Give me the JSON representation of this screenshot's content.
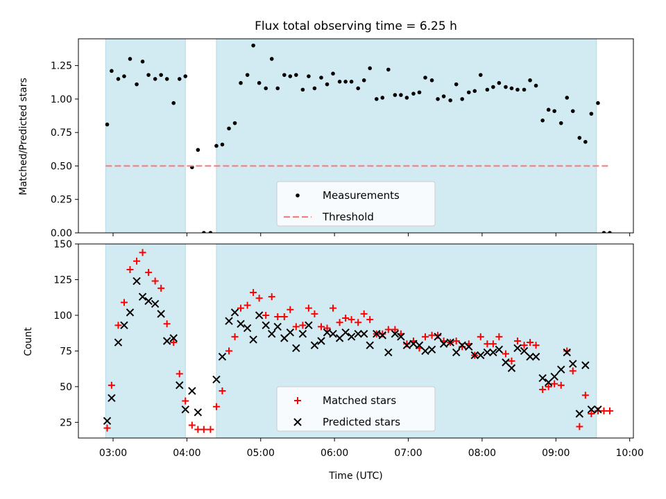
{
  "chart_data": [
    {
      "type": "scatter",
      "title": "Flux total observing time = 6.25 h",
      "xlabel": "",
      "ylabel": "Matched/Predicted stars",
      "xlim": [
        2.53,
        10.05
      ],
      "ylim": [
        0,
        1.45
      ],
      "yticks": [
        0,
        0.25,
        0.5,
        0.75,
        1.0,
        1.25
      ],
      "ytick_labels": [
        "0.00",
        "0.25",
        "0.50",
        "0.75",
        "1.00",
        "1.25"
      ],
      "shaded_intervals": [
        [
          2.9,
          3.98
        ],
        [
          4.4,
          9.55
        ]
      ],
      "shade_color": "#add8e6",
      "legend_position": "lower center",
      "series": [
        {
          "name": "Measurements",
          "marker": "dot",
          "color": "#000000",
          "x": [
            2.92,
            2.98,
            3.07,
            3.15,
            3.23,
            3.32,
            3.4,
            3.48,
            3.57,
            3.65,
            3.73,
            3.82,
            3.9,
            3.98,
            4.07,
            4.15,
            4.23,
            4.32,
            4.4,
            4.48,
            4.57,
            4.65,
            4.73,
            4.82,
            4.9,
            4.98,
            5.07,
            5.15,
            5.23,
            5.32,
            5.4,
            5.48,
            5.57,
            5.65,
            5.73,
            5.82,
            5.9,
            5.98,
            6.07,
            6.15,
            6.23,
            6.32,
            6.4,
            6.48,
            6.57,
            6.65,
            6.73,
            6.82,
            6.9,
            6.98,
            7.07,
            7.15,
            7.23,
            7.32,
            7.4,
            7.48,
            7.57,
            7.65,
            7.73,
            7.82,
            7.9,
            7.98,
            8.07,
            8.15,
            8.23,
            8.32,
            8.4,
            8.48,
            8.57,
            8.65,
            8.73,
            8.82,
            8.9,
            8.98,
            9.07,
            9.15,
            9.23,
            9.32,
            9.4,
            9.48,
            9.57,
            9.65,
            9.73
          ],
          "y": [
            0.81,
            1.21,
            1.15,
            1.17,
            1.3,
            1.11,
            1.28,
            1.18,
            1.15,
            1.18,
            1.15,
            0.97,
            1.15,
            1.17,
            0.49,
            0.62,
            0.0,
            0.0,
            0.65,
            0.66,
            0.78,
            0.82,
            1.12,
            1.18,
            1.4,
            1.12,
            1.08,
            1.3,
            1.08,
            1.18,
            1.17,
            1.18,
            1.07,
            1.17,
            1.08,
            1.16,
            1.11,
            1.19,
            1.13,
            1.13,
            1.13,
            1.08,
            1.14,
            1.23,
            1.0,
            1.01,
            1.22,
            1.03,
            1.03,
            1.01,
            1.04,
            1.05,
            1.16,
            1.14,
            1.0,
            1.02,
            0.99,
            1.11,
            1.0,
            1.05,
            1.06,
            1.18,
            1.07,
            1.09,
            1.12,
            1.09,
            1.08,
            1.07,
            1.07,
            1.14,
            1.1,
            0.84,
            0.92,
            0.91,
            0.82,
            1.01,
            0.91,
            0.71,
            0.68,
            0.89,
            0.97,
            0.0,
            0.0
          ]
        },
        {
          "name": "Threshold",
          "line": "dashed",
          "color": "#f08080",
          "x": [
            2.9,
            9.73
          ],
          "y": [
            0.5,
            0.5
          ]
        }
      ]
    },
    {
      "type": "scatter",
      "title": "",
      "xlabel": "Time (UTC)",
      "ylabel": "Count",
      "xlim": [
        2.53,
        10.05
      ],
      "ylim": [
        14,
        150
      ],
      "xticks": [
        3,
        4,
        5,
        6,
        7,
        8,
        9,
        10
      ],
      "xtick_labels": [
        "03:00",
        "04:00",
        "05:00",
        "06:00",
        "07:00",
        "08:00",
        "09:00",
        "10:00"
      ],
      "yticks": [
        25,
        50,
        75,
        100,
        125,
        150
      ],
      "ytick_labels": [
        "25",
        "50",
        "75",
        "100",
        "125",
        "150"
      ],
      "shaded_intervals": [
        [
          2.9,
          3.98
        ],
        [
          4.4,
          9.55
        ]
      ],
      "shade_color": "#add8e6",
      "legend_position": "lower center",
      "series": [
        {
          "name": "Matched stars",
          "marker": "plus",
          "color": "#ff0000",
          "x": [
            2.92,
            2.98,
            3.07,
            3.15,
            3.23,
            3.32,
            3.4,
            3.48,
            3.57,
            3.65,
            3.73,
            3.82,
            3.9,
            3.98,
            4.07,
            4.15,
            4.23,
            4.32,
            4.4,
            4.48,
            4.57,
            4.65,
            4.73,
            4.82,
            4.9,
            4.98,
            5.07,
            5.15,
            5.23,
            5.32,
            5.4,
            5.48,
            5.57,
            5.65,
            5.73,
            5.82,
            5.9,
            5.98,
            6.07,
            6.15,
            6.23,
            6.32,
            6.4,
            6.48,
            6.57,
            6.65,
            6.73,
            6.82,
            6.9,
            6.98,
            7.07,
            7.15,
            7.23,
            7.32,
            7.4,
            7.48,
            7.57,
            7.65,
            7.73,
            7.82,
            7.9,
            7.98,
            8.07,
            8.15,
            8.23,
            8.32,
            8.4,
            8.48,
            8.57,
            8.65,
            8.73,
            8.82,
            8.9,
            8.98,
            9.07,
            9.15,
            9.23,
            9.32,
            9.4,
            9.48,
            9.57,
            9.65,
            9.73
          ],
          "y": [
            21,
            51,
            93,
            109,
            132,
            138,
            144,
            130,
            124,
            119,
            94,
            81,
            59,
            40,
            23,
            20,
            20,
            20,
            36,
            47,
            75,
            85,
            105,
            107,
            116,
            112,
            100,
            113,
            99,
            99,
            104,
            92,
            93,
            105,
            101,
            92,
            91,
            105,
            95,
            98,
            97,
            95,
            101,
            97,
            87,
            87,
            90,
            90,
            87,
            80,
            82,
            77,
            85,
            86,
            86,
            82,
            81,
            82,
            78,
            80,
            72,
            85,
            80,
            80,
            85,
            73,
            68,
            82,
            79,
            81,
            79,
            48,
            50,
            52,
            51,
            75,
            61,
            22,
            44,
            31,
            33,
            33,
            33
          ]
        },
        {
          "name": "Predicted stars",
          "marker": "x",
          "color": "#000000",
          "x": [
            2.92,
            2.98,
            3.07,
            3.15,
            3.23,
            3.32,
            3.4,
            3.48,
            3.57,
            3.65,
            3.73,
            3.82,
            3.9,
            3.98,
            4.07,
            4.15,
            4.4,
            4.48,
            4.57,
            4.65,
            4.73,
            4.82,
            4.9,
            4.98,
            5.07,
            5.15,
            5.23,
            5.32,
            5.4,
            5.48,
            5.57,
            5.65,
            5.73,
            5.82,
            5.9,
            5.98,
            6.07,
            6.15,
            6.23,
            6.32,
            6.4,
            6.48,
            6.57,
            6.65,
            6.73,
            6.82,
            6.9,
            6.98,
            7.07,
            7.15,
            7.23,
            7.32,
            7.4,
            7.48,
            7.57,
            7.65,
            7.73,
            7.82,
            7.9,
            7.98,
            8.07,
            8.15,
            8.23,
            8.32,
            8.4,
            8.48,
            8.57,
            8.65,
            8.73,
            8.82,
            8.9,
            8.98,
            9.07,
            9.15,
            9.23,
            9.32,
            9.4,
            9.48,
            9.57
          ],
          "y": [
            26,
            42,
            81,
            93,
            102,
            124,
            113,
            110,
            108,
            101,
            82,
            84,
            51,
            34,
            47,
            32,
            55,
            71,
            96,
            102,
            94,
            91,
            83,
            100,
            93,
            87,
            92,
            84,
            88,
            77,
            87,
            93,
            79,
            82,
            88,
            87,
            84,
            88,
            85,
            87,
            87,
            79,
            87,
            86,
            74,
            87,
            85,
            79,
            80,
            79,
            75,
            76,
            85,
            80,
            81,
            74,
            79,
            78,
            72,
            72,
            74,
            74,
            76,
            67,
            63,
            77,
            75,
            71,
            71,
            56,
            53,
            57,
            62,
            74,
            66,
            31,
            65,
            34,
            34
          ]
        }
      ]
    }
  ]
}
